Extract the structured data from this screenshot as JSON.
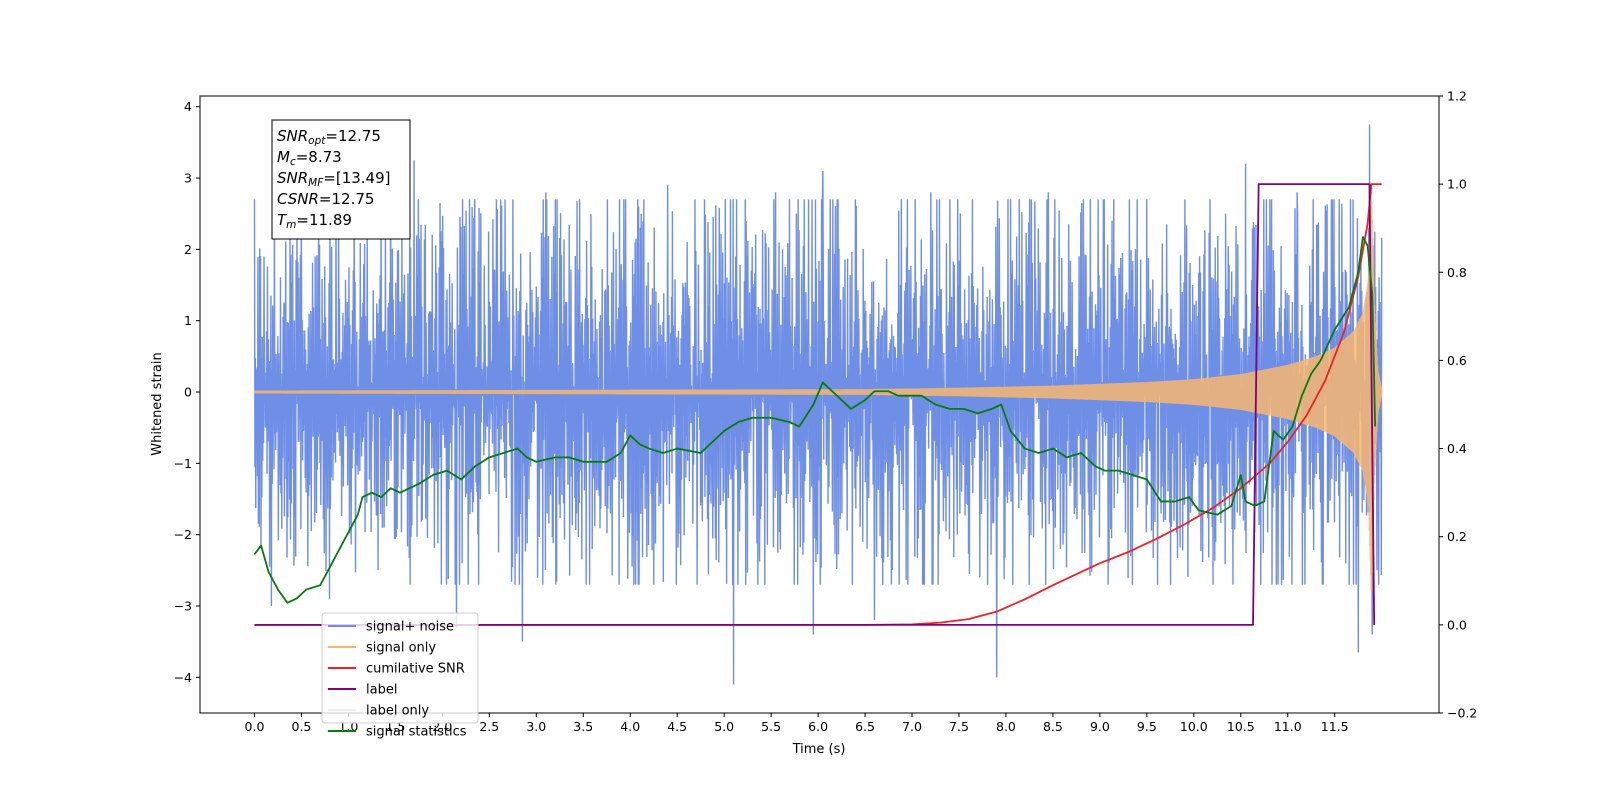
{
  "chart_data": {
    "type": "line",
    "xlabel": "Time (s)",
    "ylabel": "Whitened strain",
    "xlim": [
      -0.58,
      12.61
    ],
    "ylim_left": [
      -4.5,
      4.15
    ],
    "ylim_right": [
      -0.2,
      1.2
    ],
    "x_ticks": [
      0.0,
      0.5,
      1.0,
      1.5,
      2.0,
      2.5,
      3.0,
      3.5,
      4.0,
      4.5,
      5.0,
      5.5,
      6.0,
      6.5,
      7.0,
      7.5,
      8.0,
      8.5,
      9.0,
      9.5,
      10.0,
      10.5,
      11.0,
      11.5
    ],
    "x_tick_labels": [
      "0.0",
      "0.5",
      "1.0",
      "1.5",
      "2.0",
      "2.5",
      "3.0",
      "3.5",
      "4.0",
      "4.5",
      "5.0",
      "5.5",
      "6.0",
      "6.5",
      "7.0",
      "7.5",
      "8.0",
      "8.5",
      "9.0",
      "9.5",
      "10.0",
      "10.5",
      "11.0",
      "11.5"
    ],
    "y_left_ticks": [
      -4,
      -3,
      -2,
      -1,
      0,
      1,
      2,
      3,
      4
    ],
    "y_left_tick_labels": [
      "−4",
      "−3",
      "−2",
      "−1",
      "0",
      "1",
      "2",
      "3",
      "4"
    ],
    "y_right_ticks": [
      -0.2,
      0.0,
      0.2,
      0.4,
      0.6,
      0.8,
      1.0,
      1.2
    ],
    "y_right_tick_labels": [
      "−0.2",
      "0.0",
      "0.2",
      "0.4",
      "0.6",
      "0.8",
      "1.0",
      "1.2"
    ],
    "legend_position": "lower-left",
    "annotation_box": {
      "lines": [
        {
          "base": "SNR",
          "sub": "opt",
          "rest": "=12.75"
        },
        {
          "base": "M",
          "sub": "c",
          "rest": "=8.73"
        },
        {
          "base": "SNR",
          "sub": "MF",
          "rest": "=[13.49]"
        },
        {
          "base": "CSNR",
          "sub": "",
          "rest": "=12.75"
        },
        {
          "base": "T",
          "sub": "m",
          "rest": "=11.89"
        }
      ]
    },
    "series": [
      {
        "name": "signal+ noise",
        "color": "#6f8fe6",
        "axis": "left",
        "kind": "noise-band",
        "x_range": [
          0.0,
          12.0
        ],
        "typical_amplitude": 1.6,
        "spikes": [
          [
            0.1,
            1.9
          ],
          [
            0.18,
            -3.0
          ],
          [
            0.45,
            2.4
          ],
          [
            0.8,
            -2.9
          ],
          [
            1.45,
            3.2
          ],
          [
            1.7,
            3.25
          ],
          [
            2.15,
            -3.3
          ],
          [
            2.85,
            -3.5
          ],
          [
            3.1,
            2.8
          ],
          [
            4.4,
            2.9
          ],
          [
            5.1,
            -4.1
          ],
          [
            5.55,
            2.8
          ],
          [
            5.95,
            -3.4
          ],
          [
            6.05,
            3.1
          ],
          [
            6.6,
            -3.2
          ],
          [
            7.2,
            2.8
          ],
          [
            7.9,
            -4.0
          ],
          [
            8.45,
            2.8
          ],
          [
            9.5,
            2.7
          ],
          [
            10.55,
            3.2
          ],
          [
            11.1,
            2.8
          ],
          [
            11.75,
            -3.65
          ],
          [
            11.87,
            3.75
          ],
          [
            11.9,
            -3.4
          ],
          [
            11.95,
            -2.5
          ]
        ]
      },
      {
        "name": "signal only",
        "color": "#f8b66f",
        "axis": "left",
        "kind": "chirp",
        "x_range": [
          0.0,
          12.0
        ],
        "merger_time": 11.89,
        "amplitude_points": [
          [
            0.0,
            0.02
          ],
          [
            6.5,
            0.04
          ],
          [
            7.5,
            0.06
          ],
          [
            8.5,
            0.09
          ],
          [
            9.5,
            0.14
          ],
          [
            10.0,
            0.18
          ],
          [
            10.5,
            0.25
          ],
          [
            11.0,
            0.38
          ],
          [
            11.3,
            0.5
          ],
          [
            11.5,
            0.62
          ],
          [
            11.7,
            0.85
          ],
          [
            11.8,
            1.1
          ],
          [
            11.86,
            1.6
          ],
          [
            11.89,
            2.9
          ],
          [
            11.92,
            1.3
          ],
          [
            11.96,
            0.3
          ],
          [
            12.0,
            0.05
          ]
        ]
      },
      {
        "name": "cumilative SNR",
        "color": "#ee2222",
        "axis": "right",
        "x": [
          0.0,
          5.0,
          6.5,
          7.0,
          7.3,
          7.6,
          7.9,
          8.2,
          8.5,
          8.8,
          9.0,
          9.3,
          9.6,
          9.9,
          10.2,
          10.5,
          10.8,
          11.0,
          11.2,
          11.4,
          11.6,
          11.75,
          11.85,
          11.89,
          12.0
        ],
        "values": [
          0.0,
          0.0,
          0.0,
          0.001,
          0.005,
          0.013,
          0.03,
          0.058,
          0.09,
          0.12,
          0.14,
          0.165,
          0.195,
          0.228,
          0.265,
          0.31,
          0.365,
          0.415,
          0.475,
          0.555,
          0.665,
          0.79,
          0.91,
          1.0,
          1.0
        ]
      },
      {
        "name": "label",
        "color": "#800080",
        "axis": "right",
        "x": [
          0.0,
          10.63,
          10.69,
          11.87,
          11.92
        ],
        "values": [
          0.0,
          0.0,
          1.0,
          1.0,
          0.0
        ]
      },
      {
        "name": "label only",
        "color": "#eeeeee",
        "axis": "right",
        "legend_only": true
      },
      {
        "name": "signal statistics",
        "color": "#0a7a0a",
        "axis": "right",
        "x": [
          0.0,
          0.07,
          0.15,
          0.25,
          0.35,
          0.45,
          0.55,
          0.7,
          0.8,
          0.9,
          1.0,
          1.1,
          1.15,
          1.25,
          1.35,
          1.45,
          1.55,
          1.65,
          1.75,
          1.9,
          2.05,
          2.2,
          2.35,
          2.5,
          2.65,
          2.8,
          2.9,
          3.0,
          3.2,
          3.35,
          3.5,
          3.75,
          3.9,
          4.0,
          4.1,
          4.2,
          4.35,
          4.5,
          4.75,
          4.9,
          5.0,
          5.15,
          5.3,
          5.5,
          5.7,
          5.8,
          5.95,
          6.05,
          6.15,
          6.25,
          6.35,
          6.5,
          6.6,
          6.75,
          6.85,
          6.95,
          7.1,
          7.25,
          7.4,
          7.55,
          7.7,
          7.85,
          7.95,
          8.05,
          8.2,
          8.35,
          8.5,
          8.65,
          8.8,
          8.95,
          9.05,
          9.2,
          9.35,
          9.5,
          9.65,
          9.8,
          9.95,
          10.05,
          10.25,
          10.4,
          10.5,
          10.55,
          10.65,
          10.75,
          10.85,
          10.95,
          11.05,
          11.15,
          11.25,
          11.35,
          11.5,
          11.65,
          11.75,
          11.8,
          11.85,
          11.9,
          11.93
        ],
        "values": [
          0.16,
          0.18,
          0.12,
          0.08,
          0.05,
          0.06,
          0.08,
          0.09,
          0.13,
          0.17,
          0.21,
          0.25,
          0.29,
          0.3,
          0.29,
          0.31,
          0.3,
          0.31,
          0.32,
          0.34,
          0.35,
          0.33,
          0.36,
          0.38,
          0.39,
          0.4,
          0.38,
          0.37,
          0.38,
          0.38,
          0.37,
          0.37,
          0.39,
          0.43,
          0.41,
          0.4,
          0.39,
          0.4,
          0.39,
          0.42,
          0.44,
          0.46,
          0.47,
          0.47,
          0.46,
          0.45,
          0.5,
          0.55,
          0.53,
          0.51,
          0.49,
          0.51,
          0.53,
          0.53,
          0.52,
          0.52,
          0.52,
          0.5,
          0.49,
          0.49,
          0.48,
          0.49,
          0.5,
          0.44,
          0.4,
          0.39,
          0.4,
          0.38,
          0.39,
          0.36,
          0.35,
          0.35,
          0.34,
          0.33,
          0.28,
          0.28,
          0.29,
          0.26,
          0.25,
          0.27,
          0.34,
          0.28,
          0.27,
          0.28,
          0.44,
          0.42,
          0.45,
          0.52,
          0.57,
          0.6,
          0.67,
          0.72,
          0.8,
          0.88,
          0.86,
          0.75,
          0.45
        ]
      }
    ]
  }
}
